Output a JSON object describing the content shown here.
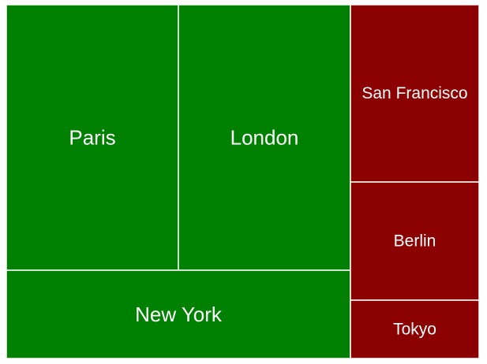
{
  "chart_data": {
    "type": "treemap",
    "colors": {
      "positive": "#008000",
      "negative": "#8b0000"
    },
    "groups": [
      {
        "group": "positive",
        "items": [
          {
            "label": "Paris"
          },
          {
            "label": "London"
          },
          {
            "label": "New York"
          }
        ]
      },
      {
        "group": "negative",
        "items": [
          {
            "label": "San Francisco"
          },
          {
            "label": "Berlin"
          },
          {
            "label": "Tokyo"
          }
        ]
      }
    ],
    "cells": [
      {
        "label": "Paris",
        "color": "#008000",
        "value": 22
      },
      {
        "label": "London",
        "color": "#008000",
        "value": 22
      },
      {
        "label": "New York",
        "color": "#008000",
        "value": 16
      },
      {
        "label": "San Francisco",
        "color": "#8b0000",
        "value": 8.4
      },
      {
        "label": "Berlin",
        "color": "#8b0000",
        "value": 5.6
      },
      {
        "label": "Tokyo",
        "color": "#8b0000",
        "value": 2.6
      }
    ]
  }
}
